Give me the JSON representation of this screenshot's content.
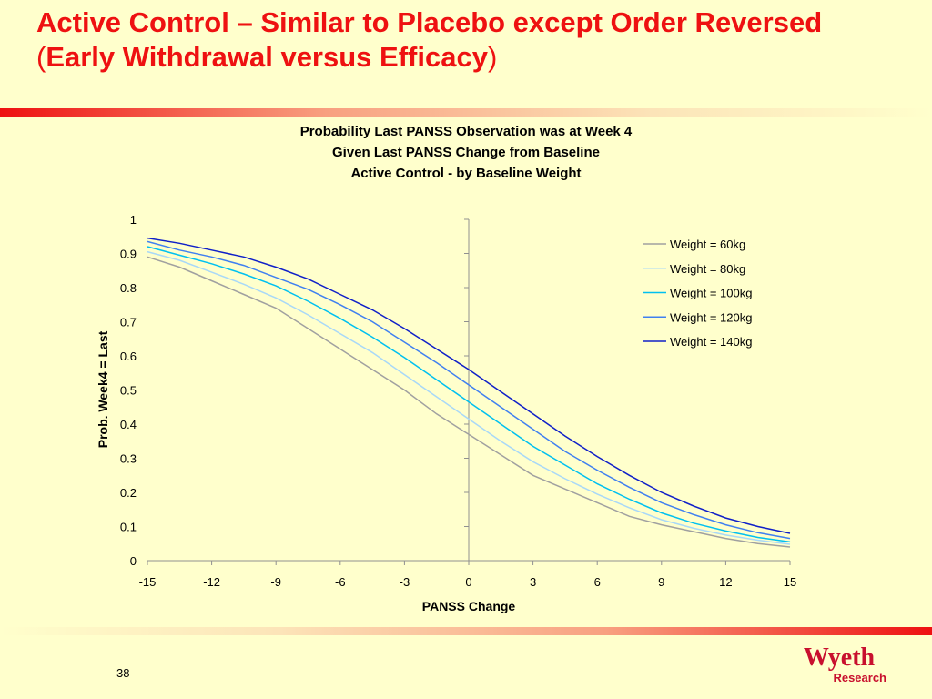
{
  "slide": {
    "title_line1": "Active Control – Similar to Placebo except Order Reversed",
    "title_line2_open": "(",
    "title_line2_text": "Early Withdrawal versus Efficacy",
    "title_line2_close": ")",
    "page_number": "38",
    "logo_brand": "Wyeth",
    "logo_sub": "Research",
    "accent_color": "#EE1111",
    "background_color": "#FFFFCC"
  },
  "chart_data": {
    "type": "line",
    "title": [
      "Probability Last PANSS Observation was at Week 4",
      "Given Last PANSS Change from Baseline",
      "Active Control - by Baseline Weight"
    ],
    "xlabel": "PANSS Change",
    "ylabel": "Prob. Week4 = Last",
    "xlim": [
      -15,
      15
    ],
    "ylim": [
      0,
      1
    ],
    "x_ticks": [
      -15,
      -12,
      -9,
      -6,
      -3,
      0,
      3,
      6,
      9,
      12,
      15
    ],
    "y_ticks": [
      0,
      0.1,
      0.2,
      0.3,
      0.4,
      0.5,
      0.6,
      0.7,
      0.8,
      0.9,
      1
    ],
    "grid": false,
    "legend_position": "top-right",
    "x": [
      -15,
      -13.5,
      -12,
      -10.5,
      -9,
      -7.5,
      -6,
      -4.5,
      -3,
      -1.5,
      0,
      1.5,
      3,
      4.5,
      6,
      7.5,
      9,
      10.5,
      12,
      13.5,
      15
    ],
    "series": [
      {
        "name": "Weight = 60kg",
        "color": "#A0A0A0",
        "values": [
          0.89,
          0.86,
          0.82,
          0.78,
          0.74,
          0.68,
          0.62,
          0.56,
          0.5,
          0.43,
          0.37,
          0.31,
          0.25,
          0.21,
          0.17,
          0.13,
          0.105,
          0.085,
          0.065,
          0.05,
          0.04
        ]
      },
      {
        "name": "Weight = 80kg",
        "color": "#A8D8F8",
        "values": [
          0.905,
          0.88,
          0.845,
          0.81,
          0.77,
          0.72,
          0.665,
          0.61,
          0.545,
          0.48,
          0.415,
          0.35,
          0.29,
          0.24,
          0.195,
          0.155,
          0.12,
          0.095,
          0.075,
          0.06,
          0.048
        ]
      },
      {
        "name": "Weight = 100kg",
        "color": "#00C0F0",
        "values": [
          0.92,
          0.895,
          0.87,
          0.84,
          0.805,
          0.76,
          0.71,
          0.655,
          0.595,
          0.53,
          0.465,
          0.4,
          0.335,
          0.28,
          0.225,
          0.18,
          0.14,
          0.11,
          0.087,
          0.068,
          0.055
        ]
      },
      {
        "name": "Weight = 120kg",
        "color": "#4080F0",
        "values": [
          0.935,
          0.91,
          0.89,
          0.865,
          0.83,
          0.795,
          0.75,
          0.7,
          0.64,
          0.58,
          0.515,
          0.45,
          0.385,
          0.32,
          0.265,
          0.215,
          0.17,
          0.135,
          0.105,
          0.082,
          0.065
        ]
      },
      {
        "name": "Weight = 140kg",
        "color": "#1020C8",
        "values": [
          0.945,
          0.93,
          0.91,
          0.89,
          0.86,
          0.825,
          0.78,
          0.735,
          0.68,
          0.62,
          0.56,
          0.495,
          0.43,
          0.365,
          0.305,
          0.25,
          0.2,
          0.16,
          0.125,
          0.1,
          0.08
        ]
      }
    ]
  }
}
